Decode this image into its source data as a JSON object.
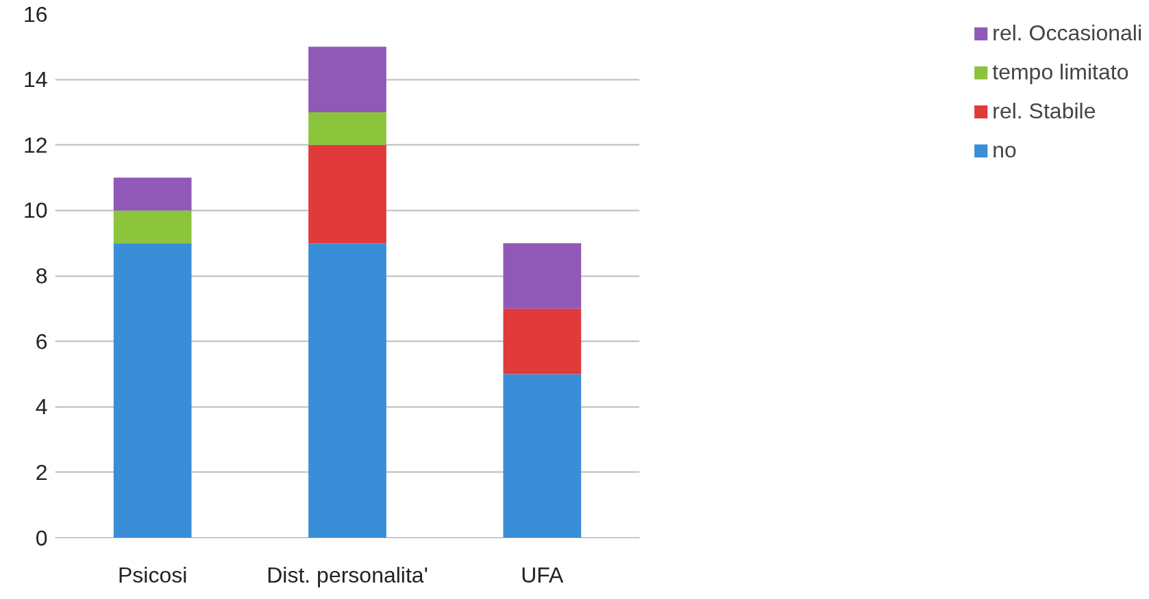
{
  "chart_data": {
    "type": "bar",
    "stacked": true,
    "categories": [
      "Psicosi",
      "Dist. personalita'",
      "UFA"
    ],
    "series": [
      {
        "name": "no",
        "color": "#3a8ed8",
        "values": [
          9,
          9,
          5
        ]
      },
      {
        "name": "rel. Stabile",
        "color": "#e03a3a",
        "values": [
          0,
          3,
          2
        ]
      },
      {
        "name": "tempo limitato",
        "color": "#8cc43c",
        "values": [
          1,
          1,
          0
        ]
      },
      {
        "name": "rel. Occasionali",
        "color": "#9059b8",
        "values": [
          1,
          2,
          2
        ]
      }
    ],
    "ylim": [
      0,
      16
    ],
    "yticks": [
      0,
      2,
      4,
      6,
      8,
      10,
      12,
      14,
      16
    ],
    "grid": "y",
    "legend": "right"
  }
}
